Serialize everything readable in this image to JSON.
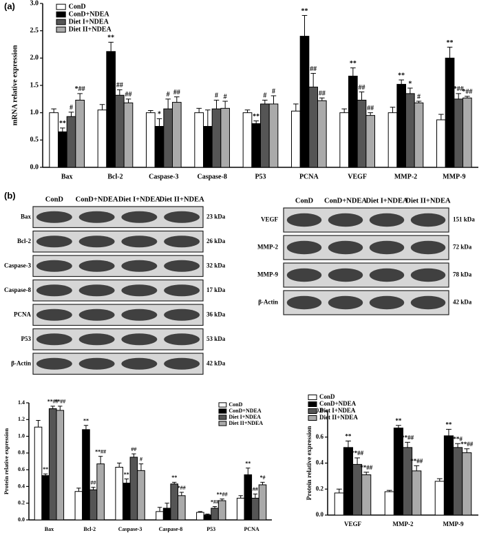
{
  "panel_labels": [
    "(a)",
    "(b)"
  ],
  "blots": [
    {
      "columns": [
        "ConD",
        "ConD+NDEA",
        "Diet I+NDEA",
        "Diet II+NDEA"
      ],
      "rows": [
        {
          "label": "Bax",
          "size": "23 kDa"
        },
        {
          "label": "Bcl-2",
          "size": "26 kDa"
        },
        {
          "label": "Caspase-3",
          "size": "32 kDa"
        },
        {
          "label": "Caspase-8",
          "size": "17 kDa"
        },
        {
          "label": "PCNA",
          "size": "36 kDa"
        },
        {
          "label": "P53",
          "size": "53 kDa"
        },
        {
          "label": "β-Actin",
          "size": "42 kDa"
        }
      ]
    },
    {
      "columns": [
        "ConD",
        "ConD+NDEA",
        "Diet I+NDEA",
        "Diet II+NDEA"
      ],
      "rows": [
        {
          "label": "VEGF",
          "size": "151 kDa"
        },
        {
          "label": "MMP-2",
          "size": "72 kDa"
        },
        {
          "label": "MMP-9",
          "size": "78 kDa"
        },
        {
          "label": "β-Actin",
          "size": "42 kDa"
        }
      ]
    }
  ],
  "chart_data": [
    {
      "type": "bar",
      "y_label": "mRNA  relative expression",
      "legend": "upper left",
      "categories": [
        "Bax",
        "Bcl-2",
        "Caspase-3",
        "Caspase-8",
        "P53",
        "PCNA",
        "VEGF",
        "MMP-2",
        "MMP-9"
      ],
      "ylim": [
        0,
        3
      ],
      "yticks": [
        {
          "value": 0,
          "label": "0.0"
        },
        {
          "value": 0.5,
          "label": "0.5"
        },
        {
          "value": 1,
          "label": "1.0"
        },
        {
          "value": 1.5,
          "label": "1.5"
        },
        {
          "value": 2,
          "label": "2.0"
        },
        {
          "value": 2.5,
          "label": "2.5"
        },
        {
          "value": 3,
          "label": "3.0"
        }
      ],
      "series": [
        {
          "name": "ConD",
          "color": "#ffffff",
          "values": [
            1.0,
            1.05,
            1.0,
            1.0,
            1.0,
            1.03,
            1.0,
            1.0,
            0.87
          ],
          "errors": [
            0.07,
            0.1,
            0.04,
            0.08,
            0.05,
            0.13,
            0.07,
            0.1,
            0.1
          ],
          "annotations": [
            null,
            null,
            null,
            null,
            null,
            null,
            null,
            null,
            null
          ]
        },
        {
          "name": "ConD+NDEA",
          "color": "#000000",
          "values": [
            0.65,
            2.12,
            0.75,
            0.75,
            0.8,
            2.4,
            1.67,
            1.52,
            2.0
          ],
          "errors": [
            0.07,
            0.17,
            0.14,
            0.3,
            0.05,
            0.38,
            0.15,
            0.08,
            0.2
          ],
          "annotations": [
            "**",
            "**",
            "*",
            null,
            "**",
            "**",
            "**",
            "**",
            "**"
          ]
        },
        {
          "name": "Diet I+NDEA",
          "color": "#555555",
          "values": [
            0.93,
            1.32,
            1.07,
            1.07,
            1.16,
            1.47,
            1.23,
            1.35,
            1.25
          ],
          "errors": [
            0.08,
            0.1,
            0.18,
            0.16,
            0.07,
            0.25,
            0.15,
            0.1,
            0.1
          ],
          "annotations": [
            "#",
            "##",
            "#",
            "#",
            "#",
            "##",
            "##",
            "*",
            "*##"
          ]
        },
        {
          "name": "Diet II+NDEA",
          "color": "#aaaaaa",
          "values": [
            1.23,
            1.18,
            1.19,
            1.08,
            1.16,
            1.22,
            0.95,
            1.18,
            1.27
          ],
          "errors": [
            0.12,
            0.07,
            0.1,
            0.13,
            0.15,
            0.05,
            0.05,
            0.03,
            0.03
          ],
          "annotations": [
            "*##",
            "##",
            "##",
            "#",
            "#",
            "##",
            "##",
            "#",
            "*##"
          ]
        }
      ]
    },
    {
      "type": "bar",
      "y_label": "Protein  relative expression",
      "legend": "upper right",
      "categories": [
        "Bax",
        "Bcl-2",
        "Caspase-3",
        "Caspase-8",
        "P53",
        "PCNA"
      ],
      "ylim": [
        0,
        1.4
      ],
      "yticks": [
        {
          "value": 0,
          "label": "0.0"
        },
        {
          "value": 0.2,
          "label": "0.2"
        },
        {
          "value": 0.4,
          "label": "0.4"
        },
        {
          "value": 0.6,
          "label": "0.6"
        },
        {
          "value": 0.8,
          "label": "0.8"
        },
        {
          "value": 1,
          "label": "1.0"
        },
        {
          "value": 1.2,
          "label": "1.2"
        },
        {
          "value": 1.4,
          "label": "1.4"
        }
      ],
      "series": [
        {
          "name": "ConD",
          "color": "#ffffff",
          "values": [
            1.11,
            0.34,
            0.63,
            0.1,
            0.09,
            0.26
          ],
          "errors": [
            0.08,
            0.04,
            0.05,
            0.05,
            0.01,
            0.03
          ],
          "annotations": [
            null,
            null,
            null,
            null,
            null,
            null
          ]
        },
        {
          "name": "ConD+NDEA",
          "color": "#000000",
          "values": [
            0.53,
            1.08,
            0.44,
            0.14,
            0.06,
            0.54
          ],
          "errors": [
            0.02,
            0.05,
            0.05,
            0.06,
            0.01,
            0.08
          ],
          "annotations": [
            "**",
            "**",
            "**",
            null,
            null,
            "**"
          ]
        },
        {
          "name": "Diet I+NDEA",
          "color": "#555555",
          "values": [
            1.33,
            0.36,
            0.75,
            0.43,
            0.14,
            0.26
          ],
          "errors": [
            0.03,
            0.03,
            0.04,
            0.02,
            0.02,
            0.05
          ],
          "annotations": [
            "**##",
            "##",
            "##",
            "**",
            "*##",
            "##"
          ]
        },
        {
          "name": "Diet II+NDEA",
          "color": "#aaaaaa",
          "values": [
            1.31,
            0.67,
            0.59,
            0.29,
            0.23,
            0.42
          ],
          "errors": [
            0.05,
            0.09,
            0.08,
            0.04,
            0.02,
            0.03
          ],
          "annotations": [
            "**##",
            "**##",
            "#",
            "*##",
            "**##",
            "*#"
          ]
        }
      ]
    },
    {
      "type": "bar",
      "y_label": "Protein relative expression",
      "legend": "upper left",
      "categories": [
        "VEGF",
        "MMP-2",
        "MMP-9"
      ],
      "ylim": [
        0,
        0.8
      ],
      "yticks": [
        {
          "value": 0,
          "label": "0.0"
        },
        {
          "value": 0.2,
          "label": "0.2"
        },
        {
          "value": 0.4,
          "label": "0.4"
        },
        {
          "value": 0.6,
          "label": "0.6"
        },
        {
          "value": 0.8,
          "label": "0.8"
        }
      ],
      "series": [
        {
          "name": "ConD",
          "color": "#ffffff",
          "values": [
            0.17,
            0.18,
            0.26
          ],
          "errors": [
            0.03,
            0.01,
            0.02
          ],
          "annotations": [
            null,
            null,
            null
          ]
        },
        {
          "name": "ConD+NDEA",
          "color": "#000000",
          "values": [
            0.52,
            0.67,
            0.61
          ],
          "errors": [
            0.05,
            0.02,
            0.05
          ],
          "annotations": [
            "**",
            "**",
            "**"
          ]
        },
        {
          "name": "Diet I+NDEA",
          "color": "#555555",
          "values": [
            0.39,
            0.52,
            0.52
          ],
          "errors": [
            0.05,
            0.04,
            0.03
          ],
          "annotations": [
            "**##",
            "**##",
            "**#"
          ]
        },
        {
          "name": "Diet II+NDEA",
          "color": "#aaaaaa",
          "values": [
            0.31,
            0.34,
            0.48
          ],
          "errors": [
            0.02,
            0.04,
            0.03
          ],
          "annotations": [
            "**##",
            "**##",
            "**##"
          ]
        }
      ]
    }
  ]
}
